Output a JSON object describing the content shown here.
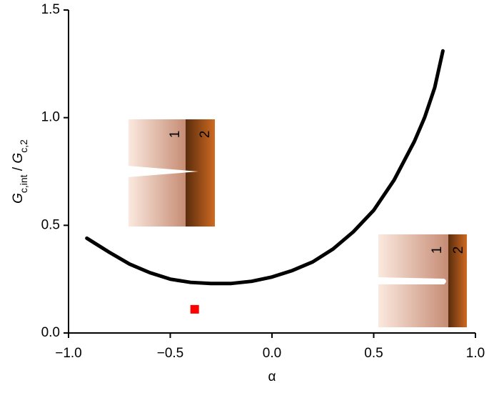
{
  "chart_data": {
    "type": "line",
    "xlabel": "α",
    "ylabel": [
      {
        "text": "G",
        "style": "italic"
      },
      {
        "text": "c,int",
        "style": "sub"
      },
      {
        "text": " / ",
        "style": "normal"
      },
      {
        "text": "G",
        "style": "italic"
      },
      {
        "text": "c,2",
        "style": "sub"
      }
    ],
    "x": [
      -0.91,
      -0.8,
      -0.7,
      -0.6,
      -0.5,
      -0.4,
      -0.3,
      -0.2,
      -0.1,
      0,
      0.1,
      0.2,
      0.3,
      0.4,
      0.5,
      0.6,
      0.7,
      0.75,
      0.8,
      0.84
    ],
    "series": [
      {
        "color": "#000000",
        "values": [
          0.44,
          0.375,
          0.32,
          0.28,
          0.25,
          0.235,
          0.23,
          0.23,
          0.24,
          0.26,
          0.29,
          0.33,
          0.39,
          0.47,
          0.57,
          0.71,
          0.89,
          1.0,
          1.14,
          1.31
        ]
      }
    ],
    "points": [
      {
        "color": "#ff0000",
        "x": -0.38,
        "y": 0.11
      }
    ],
    "xlim": [
      -1,
      1
    ],
    "ylim": [
      0,
      1.5
    ],
    "xticks": [
      {
        "value": -1,
        "label": "−1.0"
      },
      {
        "value": -0.5,
        "label": "−0.5"
      },
      {
        "value": 0,
        "label": "0.0"
      },
      {
        "value": 0.5,
        "label": "0.5"
      },
      {
        "value": 1,
        "label": "1.0"
      }
    ],
    "yticks": [
      {
        "value": 0,
        "label": "0.0"
      },
      {
        "value": 0.5,
        "label": "0.5"
      },
      {
        "value": 1,
        "label": "1.0"
      },
      {
        "value": 1.5,
        "label": "1.5"
      }
    ],
    "inset_labels": [
      [
        "1",
        "2"
      ],
      [
        "1",
        "2"
      ]
    ]
  }
}
